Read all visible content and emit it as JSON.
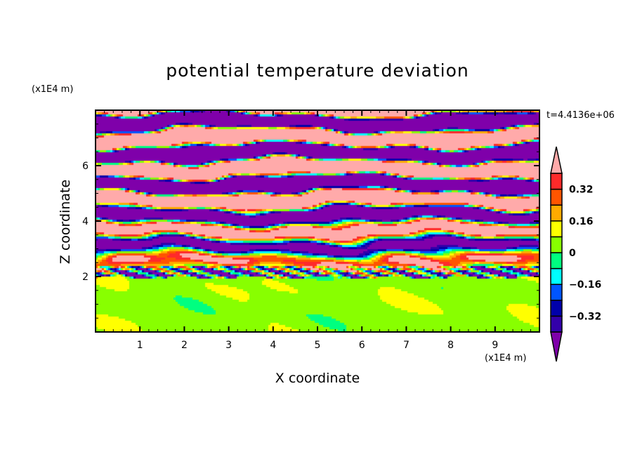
{
  "chart_data": {
    "type": "heatmap",
    "title": "potential temperature deviation",
    "xlabel": "X coordinate",
    "ylabel": "Z coordinate",
    "x_unit": "(x1E4 m)",
    "y_unit": "(x1E4 m)",
    "time_label": "t=4.4136e+06",
    "xlim": [
      0,
      10
    ],
    "ylim": [
      0,
      8
    ],
    "x_ticks": [
      1,
      2,
      3,
      4,
      5,
      6,
      7,
      8,
      9
    ],
    "y_ticks": [
      2,
      4,
      6
    ],
    "x_tick_labels": [
      "1",
      "2",
      "3",
      "4",
      "5",
      "6",
      "7",
      "8",
      "9"
    ],
    "y_tick_labels": [
      "2",
      "4",
      "6"
    ],
    "levels": [
      -0.4,
      -0.32,
      -0.24,
      -0.16,
      -0.08,
      0,
      0.08,
      0.16,
      0.24,
      0.32,
      0.4
    ],
    "colorbar_labels": [
      {
        "value": 0.32,
        "text": "0.32"
      },
      {
        "value": 0.16,
        "text": "0.16"
      },
      {
        "value": 0,
        "text": "0"
      },
      {
        "value": -0.16,
        "text": "−0.16"
      },
      {
        "value": -0.32,
        "text": "−0.32"
      }
    ],
    "colors": [
      "#7f00aa",
      "#3300aa",
      "#0000aa",
      "#0055ff",
      "#00ffff",
      "#00ff80",
      "#88ff00",
      "#ffff00",
      "#ffaa00",
      "#ff5500",
      "#ff2a2a",
      "#ffaaaa"
    ],
    "colorbar_extend": "both",
    "description_regions": {
      "lower_layer_z_below_2": "near zero (0 to 0.08)",
      "upper_layer_z_above_2": "strongly stratified bands alternating below -0.4 and above 0.4"
    }
  }
}
